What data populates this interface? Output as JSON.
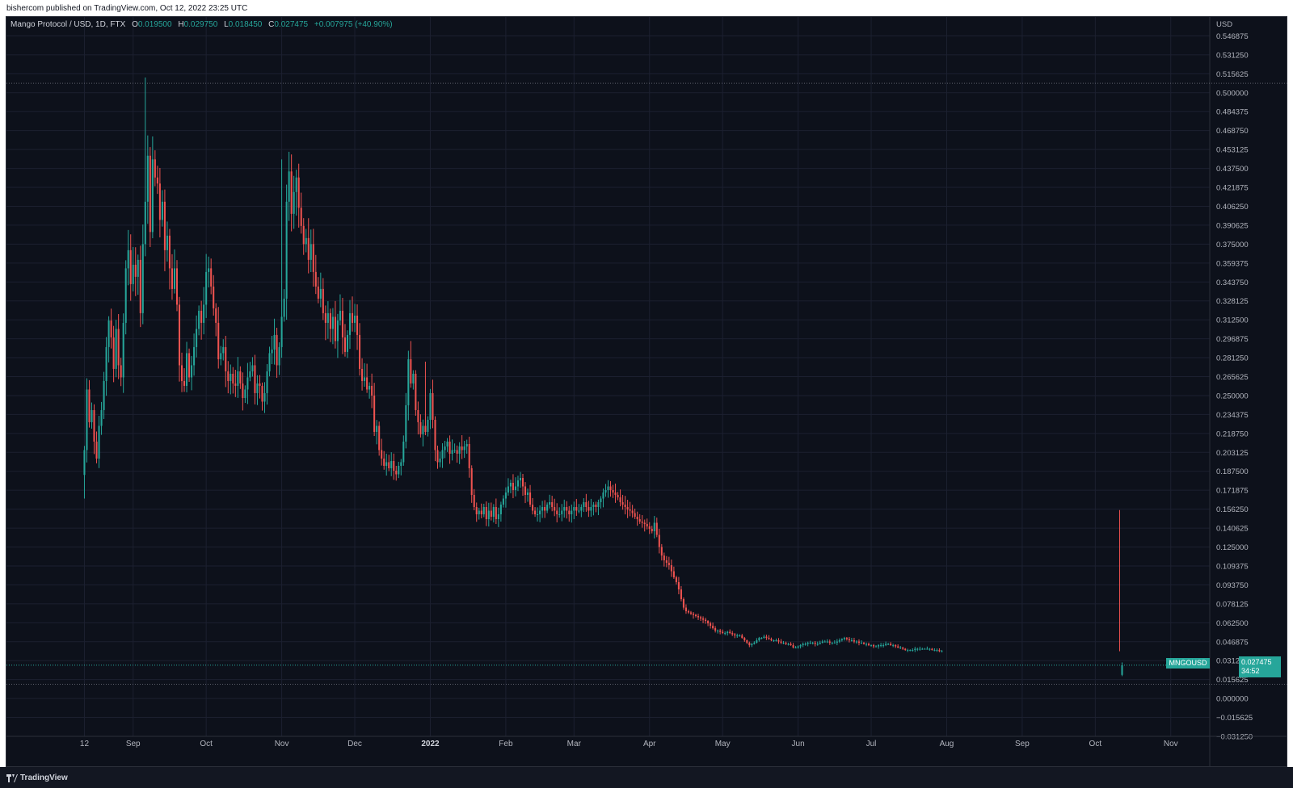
{
  "header": {
    "published": "bishercom published on TradingView.com, Oct 12, 2022 23:25 UTC"
  },
  "legend": {
    "symbol": "Mango Protocol / USD, 1D, FTX",
    "o_label": "O",
    "o": "0.019500",
    "h_label": "H",
    "h": "0.029750",
    "l_label": "L",
    "l": "0.018450",
    "c_label": "C",
    "c": "0.027475",
    "change": "+0.007975 (+40.90%)"
  },
  "footer": {
    "brand": "TradingView",
    "logo_icon": "tradingview-logo-icon"
  },
  "price_tag": {
    "symbol": "MNGOUSD",
    "price": "0.027475",
    "countdown": "34:52"
  },
  "colors": {
    "up": "#26a69a",
    "down": "#ef5350",
    "background": "#0d111b",
    "grid": "#1c2030",
    "text": "#b2b5be"
  },
  "chart_data": {
    "type": "candlestick",
    "title": "Mango Protocol / USD, 1D, FTX",
    "currency_label": "USD",
    "ylim": [
      -0.03125,
      0.5625
    ],
    "y_ticks": [
      "0.546875",
      "0.531250",
      "0.515625",
      "0.500000",
      "0.484375",
      "0.468750",
      "0.453125",
      "0.437500",
      "0.421875",
      "0.406250",
      "0.390625",
      "0.375000",
      "0.359375",
      "0.343750",
      "0.328125",
      "0.312500",
      "0.296875",
      "0.281250",
      "0.265625",
      "0.250000",
      "0.234375",
      "0.218750",
      "0.203125",
      "0.187500",
      "0.171875",
      "0.156250",
      "0.140625",
      "0.125000",
      "0.109375",
      "0.093750",
      "0.078125",
      "0.062500",
      "0.046875",
      "0.031250",
      "0.015625",
      "0.000000",
      "−0.015625",
      "−0.031250"
    ],
    "x_ticks": [
      {
        "label": "12",
        "date": "2021-08-12"
      },
      {
        "label": "Sep",
        "date": "2021-09-01"
      },
      {
        "label": "Oct",
        "date": "2021-10-01"
      },
      {
        "label": "Nov",
        "date": "2021-11-01"
      },
      {
        "label": "Dec",
        "date": "2021-12-01"
      },
      {
        "label": "2022",
        "date": "2022-01-01",
        "bold": true
      },
      {
        "label": "Feb",
        "date": "2022-02-01"
      },
      {
        "label": "Mar",
        "date": "2022-03-01"
      },
      {
        "label": "Apr",
        "date": "2022-04-01"
      },
      {
        "label": "May",
        "date": "2022-05-01"
      },
      {
        "label": "Jun",
        "date": "2022-06-01"
      },
      {
        "label": "Jul",
        "date": "2022-07-01"
      },
      {
        "label": "Aug",
        "date": "2022-08-01"
      },
      {
        "label": "Sep",
        "date": "2022-09-01"
      },
      {
        "label": "Oct",
        "date": "2022-10-01"
      },
      {
        "label": "Nov",
        "date": "2022-11-01"
      }
    ],
    "x_range": [
      "2021-07-11",
      "2022-11-17"
    ],
    "start_date": "2021-08-12",
    "last_candle": {
      "date": "2022-10-12",
      "open": 0.0195,
      "high": 0.02975,
      "low": 0.01845,
      "close": 0.027475
    },
    "reference_lines": [
      0.5078,
      0.0117
    ],
    "closes": [
      0.205,
      0.255,
      0.228,
      0.238,
      0.212,
      0.198,
      0.225,
      0.238,
      0.262,
      0.29,
      0.312,
      0.298,
      0.272,
      0.305,
      0.275,
      0.265,
      0.31,
      0.355,
      0.37,
      0.342,
      0.358,
      0.348,
      0.362,
      0.318,
      0.375,
      0.41,
      0.448,
      0.385,
      0.445,
      0.43,
      0.425,
      0.395,
      0.41,
      0.37,
      0.382,
      0.355,
      0.338,
      0.355,
      0.325,
      0.275,
      0.262,
      0.258,
      0.285,
      0.265,
      0.275,
      0.29,
      0.305,
      0.32,
      0.31,
      0.325,
      0.352,
      0.355,
      0.34,
      0.322,
      0.31,
      0.28,
      0.285,
      0.29,
      0.27,
      0.262,
      0.268,
      0.26,
      0.258,
      0.27,
      0.26,
      0.248,
      0.255,
      0.265,
      0.27,
      0.275,
      0.252,
      0.26,
      0.258,
      0.245,
      0.252,
      0.27,
      0.285,
      0.288,
      0.3,
      0.275,
      0.29,
      0.315,
      0.33,
      0.41,
      0.435,
      0.4,
      0.418,
      0.43,
      0.405,
      0.39,
      0.375,
      0.38,
      0.362,
      0.375,
      0.352,
      0.34,
      0.33,
      0.338,
      0.318,
      0.31,
      0.318,
      0.305,
      0.315,
      0.295,
      0.312,
      0.32,
      0.298,
      0.286,
      0.3,
      0.318,
      0.31,
      0.316,
      0.3,
      0.272,
      0.262,
      0.265,
      0.255,
      0.258,
      0.25,
      0.22,
      0.225,
      0.205,
      0.198,
      0.192,
      0.195,
      0.19,
      0.196,
      0.188,
      0.185,
      0.192,
      0.195,
      0.212,
      0.242,
      0.28,
      0.26,
      0.268,
      0.238,
      0.228,
      0.218,
      0.225,
      0.22,
      0.23,
      0.252,
      0.23,
      0.205,
      0.195,
      0.198,
      0.205,
      0.208,
      0.212,
      0.202,
      0.205,
      0.205,
      0.202,
      0.208,
      0.205,
      0.208,
      0.21,
      0.19,
      0.168,
      0.158,
      0.152,
      0.155,
      0.152,
      0.158,
      0.148,
      0.155,
      0.15,
      0.158,
      0.148,
      0.152,
      0.16,
      0.165,
      0.17,
      0.175,
      0.178,
      0.172,
      0.175,
      0.18,
      0.182,
      0.175,
      0.168,
      0.17,
      0.16,
      0.155,
      0.152,
      0.152,
      0.155,
      0.158,
      0.155,
      0.16,
      0.162,
      0.158,
      0.155,
      0.152,
      0.152,
      0.155,
      0.158,
      0.155,
      0.152,
      0.155,
      0.158,
      0.155,
      0.155,
      0.158,
      0.162,
      0.158,
      0.155,
      0.158,
      0.16,
      0.158,
      0.162,
      0.165,
      0.17,
      0.172,
      0.175,
      0.172,
      0.17,
      0.168,
      0.166,
      0.162,
      0.16,
      0.158,
      0.156,
      0.155,
      0.153,
      0.15,
      0.148,
      0.146,
      0.145,
      0.144,
      0.142,
      0.14,
      0.138,
      0.145,
      0.135,
      0.125,
      0.118,
      0.114,
      0.112,
      0.11,
      0.105,
      0.1,
      0.096,
      0.09,
      0.082,
      0.075,
      0.072,
      0.071,
      0.07,
      0.069,
      0.068,
      0.067,
      0.066,
      0.065,
      0.064,
      0.062,
      0.06,
      0.058,
      0.056,
      0.056,
      0.055,
      0.054,
      0.054,
      0.055,
      0.054,
      0.053,
      0.052,
      0.052,
      0.052,
      0.05,
      0.048,
      0.046,
      0.044,
      0.045,
      0.046,
      0.048,
      0.05,
      0.05,
      0.051,
      0.05,
      0.049,
      0.048,
      0.048,
      0.048,
      0.047,
      0.046,
      0.046,
      0.045,
      0.045,
      0.044,
      0.042,
      0.042,
      0.043,
      0.044,
      0.045,
      0.045,
      0.046,
      0.046,
      0.046,
      0.045,
      0.045,
      0.046,
      0.047,
      0.047,
      0.047,
      0.046,
      0.046,
      0.046,
      0.047,
      0.048,
      0.049,
      0.05,
      0.049,
      0.048,
      0.048,
      0.047,
      0.047,
      0.046,
      0.046,
      0.045,
      0.045,
      0.044,
      0.044,
      0.043,
      0.043,
      0.044,
      0.044,
      0.044,
      0.045,
      0.045,
      0.044,
      0.044,
      0.043,
      0.042,
      0.042,
      0.041,
      0.04,
      0.04,
      0.04,
      0.04,
      0.041,
      0.041,
      0.041,
      0.041,
      0.041,
      0.041,
      0.041,
      0.04,
      0.04,
      0.04,
      0.039,
      0.039,
      0.019
    ]
  }
}
